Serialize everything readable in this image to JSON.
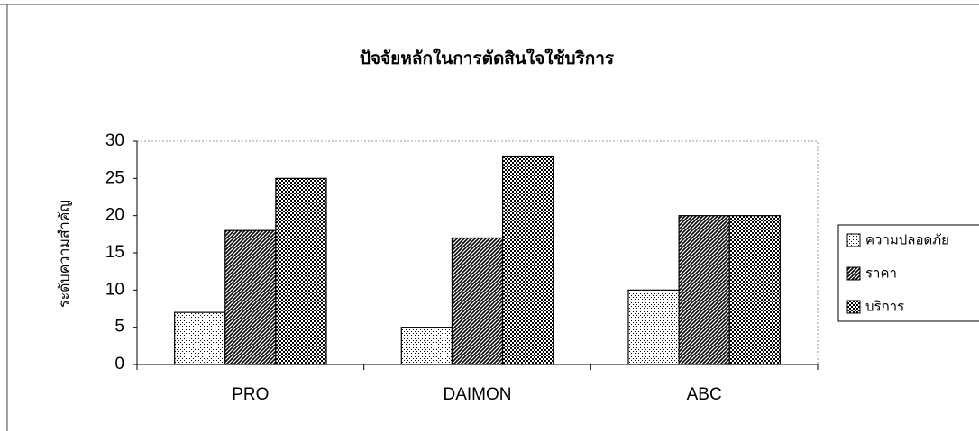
{
  "chart_data": {
    "type": "bar",
    "title": "ปัจจัยหลักในการตัดสินใจใช้บริการ",
    "y_label": "ระดับความสำคัญ",
    "categories": [
      "PRO",
      "DAIMON",
      "ABC"
    ],
    "series": [
      {
        "name": "ความปลอดภัย",
        "color": "#000000",
        "pattern": "dots",
        "values": [
          7,
          5,
          10
        ]
      },
      {
        "name": "ราคา",
        "color": "#000000",
        "pattern": "diagonal",
        "values": [
          18,
          17,
          20
        ]
      },
      {
        "name": "บริการ",
        "color": "#000000",
        "pattern": "checker",
        "values": [
          25,
          28,
          20
        ]
      }
    ],
    "ylim": [
      0,
      30
    ],
    "yticks": [
      0,
      5,
      10,
      15,
      20,
      25,
      30
    ],
    "legend": "right"
  }
}
